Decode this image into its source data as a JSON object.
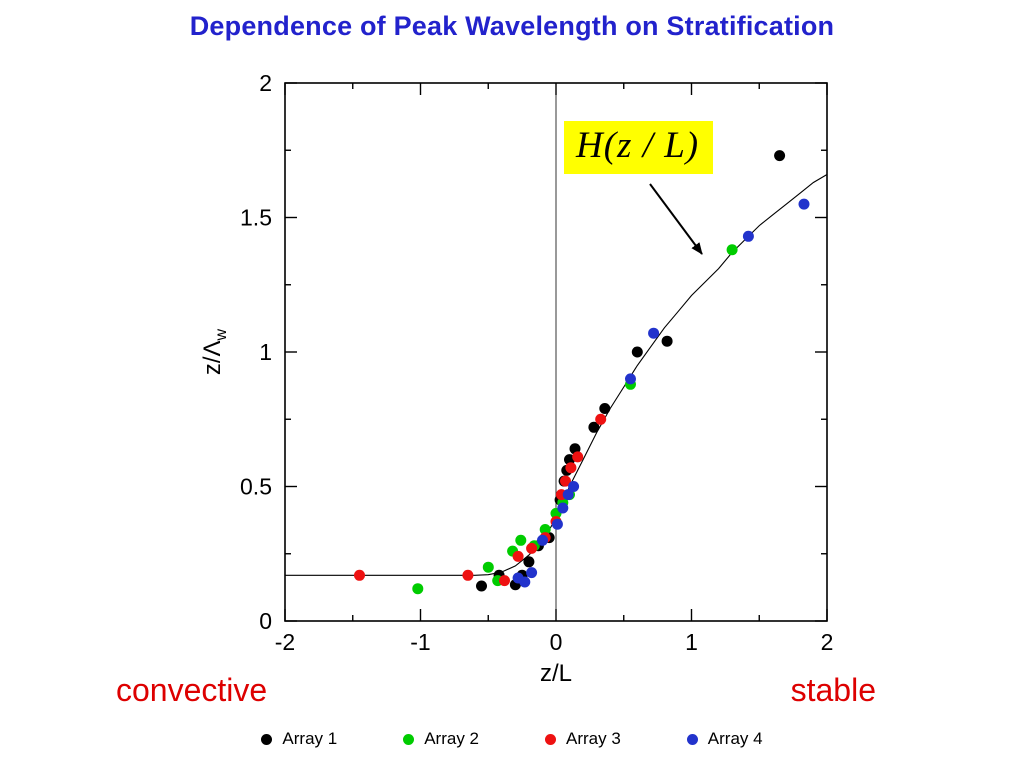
{
  "title": "Dependence of Peak Wavelength on Stratification",
  "annotation": {
    "text": "H(z / L)"
  },
  "regime_labels": {
    "left": "convective",
    "right": "stable"
  },
  "colors": {
    "title": "#2222cc",
    "regime": "#dd0000",
    "annotation_bg": "#ffff00",
    "axis": "#000000"
  },
  "chart_data": {
    "type": "scatter",
    "title": "Dependence of Peak Wavelength on Stratification",
    "xlabel": "z/L",
    "ylabel": "z/Λ",
    "ylabel_sub": "w",
    "xlim": [
      -2,
      2
    ],
    "ylim": [
      0,
      2
    ],
    "xticks": [
      -2,
      -1,
      0,
      1,
      2
    ],
    "xtick_labels": [
      "-2",
      "-1",
      "0",
      "1",
      "2"
    ],
    "x_minor_step": 0.5,
    "yticks": [
      0,
      0.5,
      1,
      1.5,
      2
    ],
    "ytick_labels": [
      "0",
      "0.5",
      "1",
      "1.5",
      "2"
    ],
    "y_minor_step": 0.25,
    "vline_x": 0,
    "grid": false,
    "legend_position": "bottom",
    "curve": {
      "name": "H(z/L)",
      "points": [
        [
          -2.0,
          0.17
        ],
        [
          -0.6,
          0.17
        ],
        [
          -0.5,
          0.172
        ],
        [
          -0.4,
          0.182
        ],
        [
          -0.3,
          0.205
        ],
        [
          -0.2,
          0.245
        ],
        [
          -0.1,
          0.3
        ],
        [
          0.0,
          0.38
        ],
        [
          0.1,
          0.5
        ],
        [
          0.2,
          0.6
        ],
        [
          0.3,
          0.7
        ],
        [
          0.4,
          0.79
        ],
        [
          0.5,
          0.87
        ],
        [
          0.6,
          0.95
        ],
        [
          0.7,
          1.02
        ],
        [
          0.8,
          1.09
        ],
        [
          0.9,
          1.15
        ],
        [
          1.0,
          1.21
        ],
        [
          1.1,
          1.26
        ],
        [
          1.2,
          1.31
        ],
        [
          1.3,
          1.37
        ],
        [
          1.4,
          1.42
        ],
        [
          1.5,
          1.47
        ],
        [
          1.6,
          1.51
        ],
        [
          1.7,
          1.55
        ],
        [
          1.8,
          1.59
        ],
        [
          1.9,
          1.63
        ],
        [
          2.0,
          1.66
        ]
      ]
    },
    "series": [
      {
        "name": "Array 1",
        "color": "#000000",
        "points": [
          [
            -0.55,
            0.13
          ],
          [
            -0.42,
            0.17
          ],
          [
            -0.3,
            0.135
          ],
          [
            -0.25,
            0.17
          ],
          [
            -0.2,
            0.22
          ],
          [
            -0.13,
            0.28
          ],
          [
            -0.05,
            0.31
          ],
          [
            0.03,
            0.45
          ],
          [
            0.06,
            0.52
          ],
          [
            0.08,
            0.56
          ],
          [
            0.1,
            0.6
          ],
          [
            0.14,
            0.64
          ],
          [
            0.28,
            0.72
          ],
          [
            0.36,
            0.79
          ],
          [
            0.6,
            1.0
          ],
          [
            0.82,
            1.04
          ],
          [
            1.65,
            1.73
          ]
        ]
      },
      {
        "name": "Array 2",
        "color": "#00cc00",
        "points": [
          [
            -1.02,
            0.12
          ],
          [
            -0.5,
            0.2
          ],
          [
            -0.43,
            0.15
          ],
          [
            -0.32,
            0.26
          ],
          [
            -0.26,
            0.3
          ],
          [
            -0.16,
            0.28
          ],
          [
            -0.08,
            0.34
          ],
          [
            0.0,
            0.4
          ],
          [
            0.05,
            0.44
          ],
          [
            0.1,
            0.47
          ],
          [
            0.55,
            0.88
          ],
          [
            1.3,
            1.38
          ]
        ]
      },
      {
        "name": "Array 3",
        "color": "#ee1111",
        "points": [
          [
            -1.45,
            0.17
          ],
          [
            -0.65,
            0.17
          ],
          [
            -0.38,
            0.15
          ],
          [
            -0.28,
            0.24
          ],
          [
            -0.18,
            0.27
          ],
          [
            -0.08,
            0.31
          ],
          [
            0.0,
            0.37
          ],
          [
            0.04,
            0.47
          ],
          [
            0.07,
            0.52
          ],
          [
            0.11,
            0.57
          ],
          [
            0.16,
            0.61
          ],
          [
            0.33,
            0.75
          ]
        ]
      },
      {
        "name": "Array 4",
        "color": "#2233cc",
        "points": [
          [
            -0.28,
            0.16
          ],
          [
            -0.23,
            0.145
          ],
          [
            -0.18,
            0.18
          ],
          [
            -0.1,
            0.3
          ],
          [
            0.01,
            0.36
          ],
          [
            0.05,
            0.42
          ],
          [
            0.09,
            0.47
          ],
          [
            0.13,
            0.5
          ],
          [
            0.55,
            0.9
          ],
          [
            0.72,
            1.07
          ],
          [
            1.42,
            1.43
          ],
          [
            1.83,
            1.55
          ]
        ]
      }
    ]
  }
}
